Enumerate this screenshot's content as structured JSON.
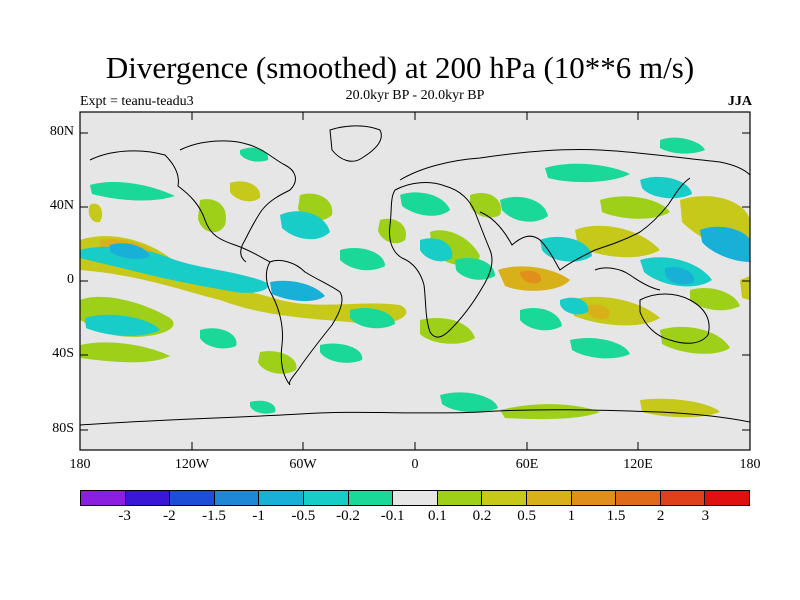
{
  "title": "Divergence (smoothed) at 200 hPa (10**6 m/s)",
  "subtitle": "20.0kyr BP - 20.0kyr BP",
  "experiment": "Expt = teanu-teadu3",
  "season": "JJA",
  "y_axis_labels": [
    "80N",
    "40N",
    "0",
    "40S",
    "80S"
  ],
  "x_axis_labels": [
    "180",
    "120W",
    "60W",
    "0",
    "60E",
    "120E",
    "180"
  ],
  "colorbar": {
    "colors": [
      "#8b1fe0",
      "#3a17d6",
      "#1d4ed8",
      "#1e88d6",
      "#19b0d8",
      "#18ccc8",
      "#1ad898",
      "#e6e6e6",
      "#9ed01a",
      "#c6c81a",
      "#d8b01a",
      "#e0901a",
      "#e06a1a",
      "#e0401a",
      "#e01010"
    ],
    "labels": [
      "-3",
      "-2",
      "-1.5",
      "-1",
      "-0.5",
      "-0.2",
      "-0.1",
      "0.1",
      "0.2",
      "0.5",
      "1",
      "1.5",
      "2",
      "3"
    ]
  },
  "colors": {
    "ocean_background": "#e6e6e6",
    "neg_weak": "#1ad898",
    "neg_mid": "#18ccc8",
    "neg_strong": "#19b0d8",
    "pos_weak": "#9ed01a",
    "pos_mid": "#c6c81a",
    "pos_strong": "#d8b01a",
    "pos_strongest": "#e0901a"
  }
}
